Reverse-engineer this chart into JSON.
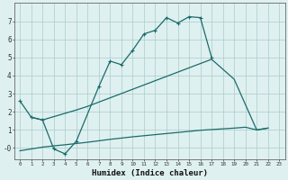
{
  "xlabel": "Humidex (Indice chaleur)",
  "background_color": "#dff0f0",
  "grid_color": "#aacccc",
  "line_color": "#1a6b6b",
  "xlim": [
    -0.5,
    23.5
  ],
  "ylim": [
    -0.6,
    8.0
  ],
  "yticks": [
    0,
    1,
    2,
    3,
    4,
    5,
    6,
    7
  ],
  "ytick_labels": [
    "-0",
    "1",
    "2",
    "3",
    "4",
    "5",
    "6",
    "7"
  ],
  "xticks": [
    0,
    1,
    2,
    3,
    4,
    5,
    6,
    7,
    8,
    9,
    10,
    11,
    12,
    13,
    14,
    15,
    16,
    17,
    18,
    19,
    20,
    21,
    22,
    23
  ],
  "marker_line_x": [
    0,
    1,
    2,
    3,
    4,
    5,
    7,
    8,
    9,
    10,
    11,
    12,
    13,
    14,
    15,
    16,
    17
  ],
  "marker_line_y": [
    2.6,
    1.7,
    1.55,
    -0.05,
    -0.32,
    0.38,
    3.4,
    4.8,
    4.6,
    5.4,
    6.3,
    6.5,
    7.2,
    6.9,
    7.25,
    7.2,
    5.0
  ],
  "upper_smooth_x": [
    1,
    2,
    5,
    6,
    17,
    19,
    21,
    22
  ],
  "upper_smooth_y": [
    1.7,
    1.55,
    2.1,
    2.3,
    4.9,
    3.8,
    1.0,
    1.1
  ],
  "lower_smooth_x": [
    0,
    1,
    2,
    3,
    4,
    5,
    6,
    7,
    8,
    9,
    10,
    11,
    12,
    13,
    14,
    15,
    16,
    17,
    18,
    19,
    20,
    21,
    22
  ],
  "lower_smooth_y": [
    -0.15,
    -0.05,
    0.05,
    0.12,
    0.18,
    0.25,
    0.32,
    0.4,
    0.48,
    0.55,
    0.62,
    0.68,
    0.74,
    0.8,
    0.86,
    0.92,
    0.98,
    1.02,
    1.06,
    1.1,
    1.15,
    1.0,
    1.1
  ]
}
